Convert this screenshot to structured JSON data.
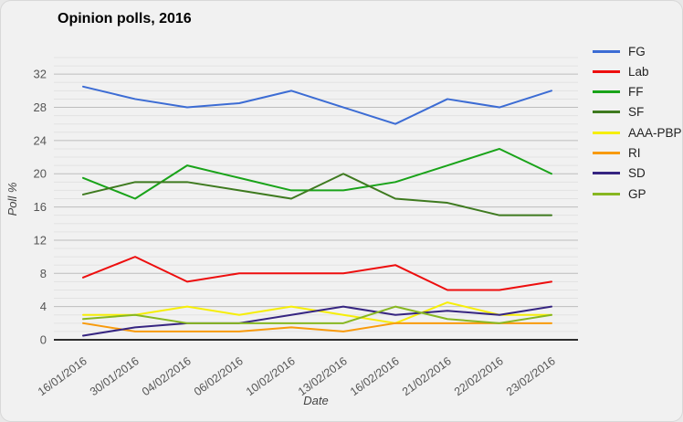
{
  "chart": {
    "title": "Opinion polls, 2016",
    "x_axis_label": "Date",
    "y_axis_label": "Poll %"
  },
  "chart_data": {
    "type": "line",
    "title": "Opinion polls, 2016",
    "xlabel": "Date",
    "ylabel": "Poll %",
    "categories": [
      "16/01/2016",
      "30/01/2016",
      "04/02/2016",
      "06/02/2016",
      "10/02/2016",
      "13/02/2016",
      "16/02/2016",
      "21/02/2016",
      "22/02/2016",
      "23/02/2016"
    ],
    "series": [
      {
        "name": "FG",
        "color": "#3c6cd4",
        "values": [
          30.5,
          29,
          28,
          28.5,
          30,
          28,
          26,
          29,
          28,
          30
        ]
      },
      {
        "name": "Lab",
        "color": "#ed0e0e",
        "values": [
          7.5,
          10,
          7,
          8,
          8,
          8,
          9,
          6,
          6,
          7
        ]
      },
      {
        "name": "FF",
        "color": "#19a319",
        "values": [
          19.5,
          17,
          21,
          19.5,
          18,
          18,
          19,
          21,
          23,
          20
        ]
      },
      {
        "name": "SF",
        "color": "#3e7a1f",
        "values": [
          17.5,
          19,
          19,
          18,
          17,
          20,
          17,
          16.5,
          15,
          15
        ]
      },
      {
        "name": "AAA-PBP",
        "color": "#f6ee08",
        "values": [
          3,
          3,
          4,
          3,
          4,
          3,
          2,
          4.5,
          3,
          3
        ]
      },
      {
        "name": "RI",
        "color": "#f89a0b",
        "values": [
          2,
          1,
          1,
          1,
          1.5,
          1,
          2,
          2,
          2,
          2
        ]
      },
      {
        "name": "SD",
        "color": "#362581",
        "values": [
          0.5,
          1.5,
          2,
          2,
          3,
          4,
          3,
          3.5,
          3,
          4
        ]
      },
      {
        "name": "GP",
        "color": "#87b721",
        "values": [
          2.5,
          3,
          2,
          2,
          2,
          2,
          4,
          2.5,
          2,
          3
        ]
      }
    ],
    "ylim": [
      0,
      34
    ],
    "y_tick_interval": 4,
    "minor_grid_interval": 1,
    "y_tick_labels": [
      "0",
      "4",
      "8",
      "12",
      "16",
      "20",
      "24",
      "28",
      "32"
    ],
    "grid": true,
    "legend_position": "right"
  }
}
